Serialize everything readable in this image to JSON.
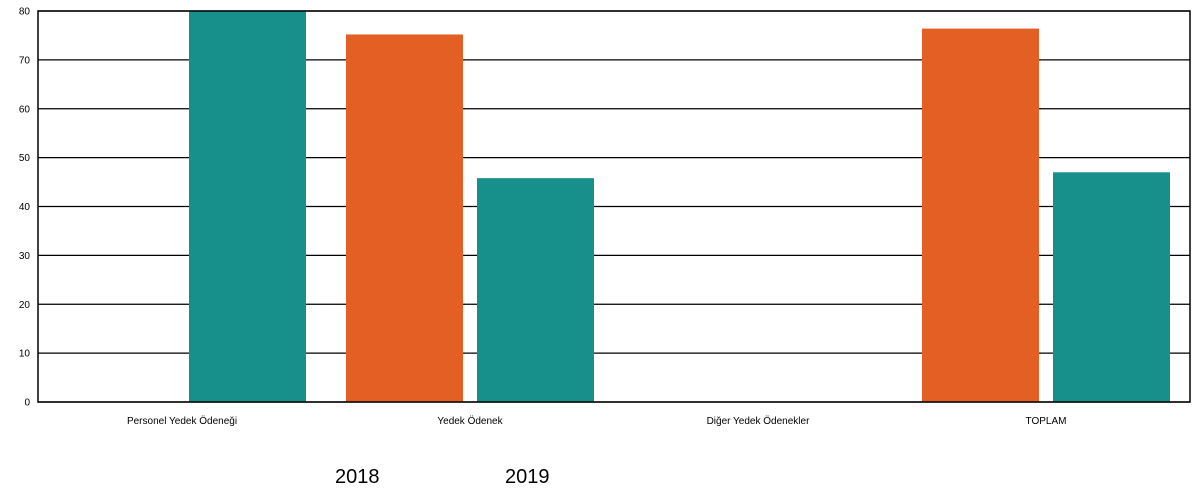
{
  "chart_data": {
    "type": "bar",
    "categories": [
      "Personel Yedek Ödeneği",
      "Yedek Ödenek",
      "Diğer Yedek Ödenekler",
      "TOPLAM"
    ],
    "series": [
      {
        "name": "2018",
        "color": "#E45F24",
        "values": [
          null,
          75.2,
          null,
          76.4
        ]
      },
      {
        "name": "2019",
        "color": "#17908C",
        "values": [
          80,
          45.8,
          null,
          47
        ]
      }
    ],
    "ylim": [
      0,
      80
    ],
    "yticks": [
      0,
      10,
      20,
      30,
      40,
      50,
      60,
      70,
      80
    ],
    "grid": true,
    "legend_position": "bottom-left"
  }
}
